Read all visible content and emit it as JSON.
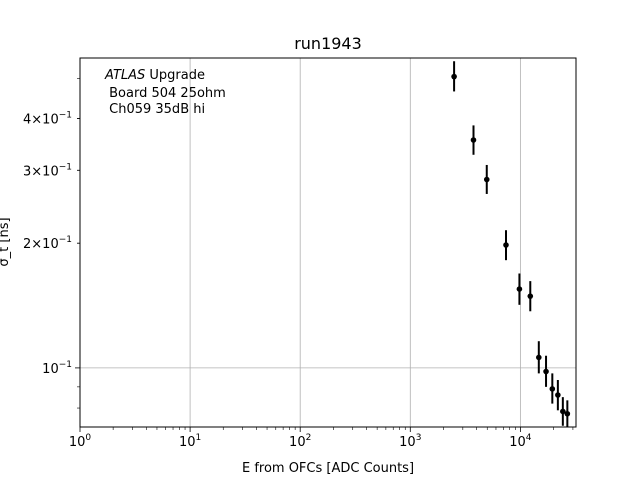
{
  "chart_data": {
    "type": "scatter",
    "title": "run1943",
    "xlabel": "E from OFCs [ADC Counts]",
    "ylabel": "σ_t [ns]",
    "x_scale": "log",
    "y_scale": "log",
    "xlim": [
      1,
      32000
    ],
    "ylim": [
      0.072,
      0.56
    ],
    "grid": true,
    "annotation": {
      "italic": "ATLAS",
      "line1": " Upgrade",
      "line2": " Board 504 25ohm",
      "line3": " Ch059 35dB hi"
    },
    "x_ticks": [
      {
        "value": 1,
        "base": "10",
        "exp": "0"
      },
      {
        "value": 10,
        "base": "10",
        "exp": "1"
      },
      {
        "value": 100,
        "base": "10",
        "exp": "2"
      },
      {
        "value": 1000,
        "base": "10",
        "exp": "3"
      },
      {
        "value": 10000,
        "base": "10",
        "exp": "4"
      }
    ],
    "y_ticks": [
      {
        "value": 0.1,
        "mant": "",
        "base": "10",
        "exp": "−1"
      },
      {
        "value": 0.2,
        "mant": "2×",
        "base": "10",
        "exp": "−1"
      },
      {
        "value": 0.3,
        "mant": "3×",
        "base": "10",
        "exp": "−1"
      },
      {
        "value": 0.4,
        "mant": "4×",
        "base": "10",
        "exp": "−1"
      }
    ],
    "series": [
      {
        "color": "#000000",
        "points": [
          {
            "x": 2500,
            "y": 0.505,
            "yerr_lo": 0.04,
            "yerr_hi": 0.045
          },
          {
            "x": 3750,
            "y": 0.355,
            "yerr_lo": 0.028,
            "yerr_hi": 0.03
          },
          {
            "x": 4950,
            "y": 0.285,
            "yerr_lo": 0.022,
            "yerr_hi": 0.024
          },
          {
            "x": 7400,
            "y": 0.198,
            "yerr_lo": 0.016,
            "yerr_hi": 0.017
          },
          {
            "x": 9800,
            "y": 0.155,
            "yerr_lo": 0.013,
            "yerr_hi": 0.014
          },
          {
            "x": 12300,
            "y": 0.149,
            "yerr_lo": 0.012,
            "yerr_hi": 0.013
          },
          {
            "x": 14700,
            "y": 0.106,
            "yerr_lo": 0.009,
            "yerr_hi": 0.01
          },
          {
            "x": 17100,
            "y": 0.098,
            "yerr_lo": 0.008,
            "yerr_hi": 0.009
          },
          {
            "x": 19500,
            "y": 0.089,
            "yerr_lo": 0.007,
            "yerr_hi": 0.008
          },
          {
            "x": 21900,
            "y": 0.086,
            "yerr_lo": 0.007,
            "yerr_hi": 0.0075
          },
          {
            "x": 24300,
            "y": 0.0785,
            "yerr_lo": 0.006,
            "yerr_hi": 0.0065
          },
          {
            "x": 26700,
            "y": 0.0775,
            "yerr_lo": 0.0055,
            "yerr_hi": 0.006
          }
        ]
      }
    ]
  }
}
